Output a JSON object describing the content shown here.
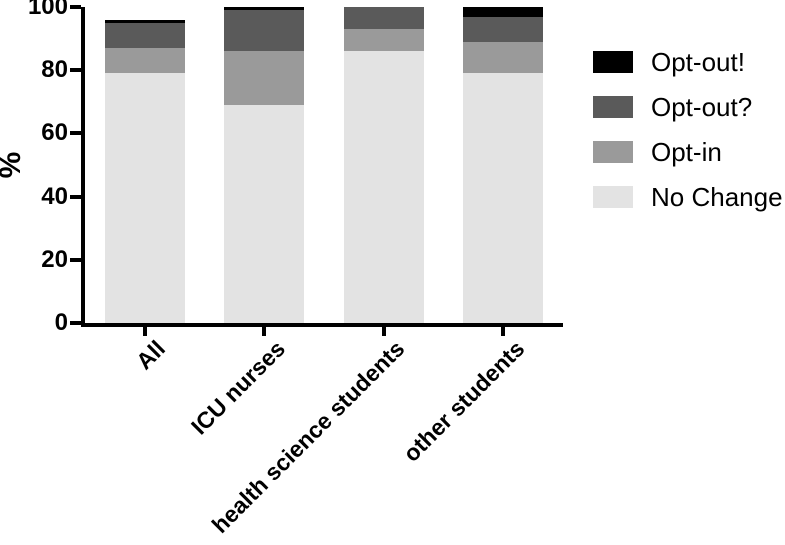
{
  "chart_data": {
    "type": "bar",
    "subtype": "stacked",
    "ylabel": "%",
    "xlabel": "",
    "ylim": [
      0,
      100
    ],
    "yticks": [
      0,
      20,
      40,
      60,
      80,
      100
    ],
    "grid": false,
    "legend_position": "right",
    "axis_color": "#000000",
    "categories": [
      "All",
      "ICU nurses",
      "health science students",
      "other students"
    ],
    "series": [
      {
        "name": "No Change",
        "color": "#e3e3e3",
        "values": [
          79,
          69,
          86,
          79
        ]
      },
      {
        "name": "Opt-in",
        "color": "#9a9a9a",
        "values": [
          8,
          17,
          7,
          10
        ]
      },
      {
        "name": "Opt-out?",
        "color": "#5a5a5a",
        "values": [
          8,
          13,
          7,
          8
        ]
      },
      {
        "name": "Opt-out!",
        "color": "#000000",
        "values": [
          1,
          1,
          0,
          3
        ]
      }
    ],
    "stack_totals": [
      96,
      100,
      100,
      100
    ],
    "legend_entries": [
      {
        "label": "Opt-out!",
        "color": "#000000"
      },
      {
        "label": "Opt-out?",
        "color": "#5a5a5a"
      },
      {
        "label": "Opt-in",
        "color": "#9a9a9a"
      },
      {
        "label": "No Change",
        "color": "#e3e3e3"
      }
    ]
  }
}
